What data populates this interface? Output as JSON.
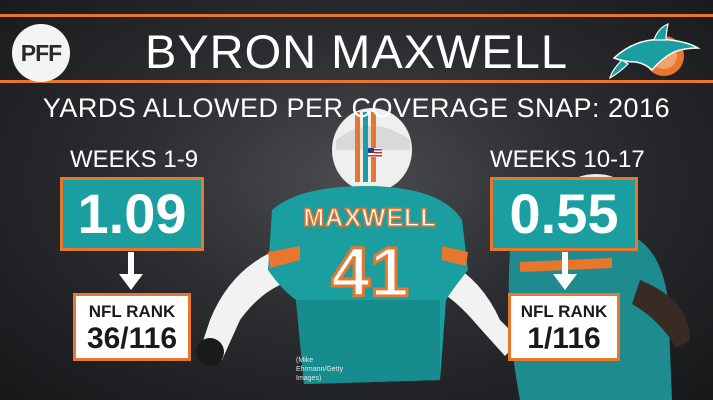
{
  "header": {
    "brand": "PFF",
    "title": "BYRON MAXWELL",
    "subtitle": "YARDS ALLOWED PER COVERAGE SNAP: 2016"
  },
  "player": {
    "jersey_name": "MAXWELL",
    "jersey_number": "41"
  },
  "periods": [
    {
      "label": "WEEKS 1-9",
      "value": "1.09",
      "rank_label": "NFL RANK",
      "rank": "36/116"
    },
    {
      "label": "WEEKS 10-17",
      "value": "0.55",
      "rank_label": "NFL RANK",
      "rank": "1/116"
    }
  ],
  "photo_credit": "(Mike Ehrmann/Getty Images)",
  "colors": {
    "accent": "#e8762d",
    "teal": "#1a9ea0",
    "background": "#2c2d30"
  },
  "icons": {
    "team_logo": "dolphin-logo-icon",
    "flag": "us-flag-icon"
  }
}
